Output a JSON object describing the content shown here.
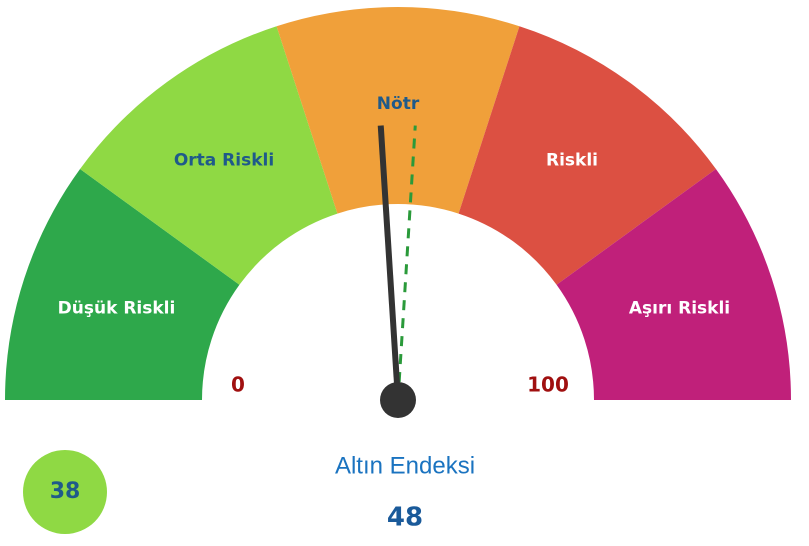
{
  "chart_data": {
    "type": "gauge",
    "title": "Altın Endeksi",
    "value": 48,
    "marker_value": 52,
    "badge": 38,
    "range": [
      0,
      100
    ],
    "bands": [
      {
        "label": "Düşük Riskli",
        "from": 0,
        "to": 20,
        "color": "#2ea84b",
        "label_color": "#ffffff"
      },
      {
        "label": "Orta Riskli",
        "from": 20,
        "to": 40,
        "color": "#8fd944",
        "label_color": "#1f5a8a"
      },
      {
        "label": "Nötr",
        "from": 40,
        "to": 60,
        "color": "#f0a03a",
        "label_color": "#1f5a8a"
      },
      {
        "label": "Riskli",
        "from": 60,
        "to": 80,
        "color": "#dc5042",
        "label_color": "#ffffff"
      },
      {
        "label": "Aşırı Riskli",
        "from": 80,
        "to": 100,
        "color": "#c0207a",
        "label_color": "#ffffff"
      }
    ],
    "needle_color": "#333333",
    "marker_color": "#2a9a3a",
    "badge_color": "#8fd944"
  }
}
